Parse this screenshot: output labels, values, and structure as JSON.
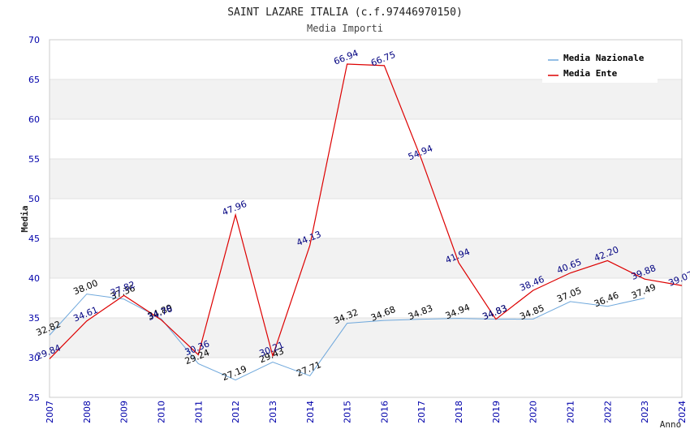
{
  "chart_data": {
    "type": "line",
    "title": "SAINT LAZARE ITALIA (c.f.97446970150)",
    "subtitle": "Media Importi",
    "xlabel": "Anno",
    "ylabel": "Media",
    "ylim": [
      25,
      70
    ],
    "yticks": [
      25,
      30,
      35,
      40,
      45,
      50,
      55,
      60,
      65,
      70
    ],
    "x": [
      "2007",
      "2008",
      "2009",
      "2010",
      "2011",
      "2012",
      "2013",
      "2014",
      "2015",
      "2016",
      "2017",
      "2018",
      "2019",
      "2020",
      "2021",
      "2022",
      "2023",
      "2024"
    ],
    "grid": "horizontal bands",
    "legend_position": "top-right",
    "series": [
      {
        "name": "Media Nazionale",
        "color": "#6fa8dc",
        "label_color": "#000000",
        "values": [
          32.82,
          38.0,
          37.36,
          34.89,
          29.24,
          27.19,
          29.43,
          27.71,
          34.32,
          34.68,
          34.83,
          34.94,
          34.83,
          34.85,
          37.05,
          36.46,
          37.49,
          null
        ],
        "labels": [
          "32.82",
          "38.00",
          "37.36",
          "34.89",
          "29.24",
          "27.19",
          "29.43",
          "27.71",
          "34.32",
          "34.68",
          "34.83",
          "34.94",
          "34.83",
          "34.85",
          "37.05",
          "36.46",
          "37.49",
          null
        ]
      },
      {
        "name": "Media Ente",
        "color": "#dd0000",
        "label_color": "#000080",
        "values": [
          29.84,
          34.61,
          37.82,
          34.76,
          30.36,
          47.96,
          30.21,
          44.13,
          66.94,
          66.75,
          54.94,
          41.94,
          34.83,
          38.46,
          40.65,
          42.2,
          39.88,
          39.07
        ],
        "labels": [
          "29.84",
          "34.61",
          "37.82",
          "34.76",
          "30.36",
          "47.96",
          "30.21",
          "44.13",
          "66.94",
          "66.75",
          "54.94",
          "41.94",
          "34.83",
          "38.46",
          "40.65",
          "42.20",
          "39.88",
          "39.07"
        ]
      }
    ]
  }
}
